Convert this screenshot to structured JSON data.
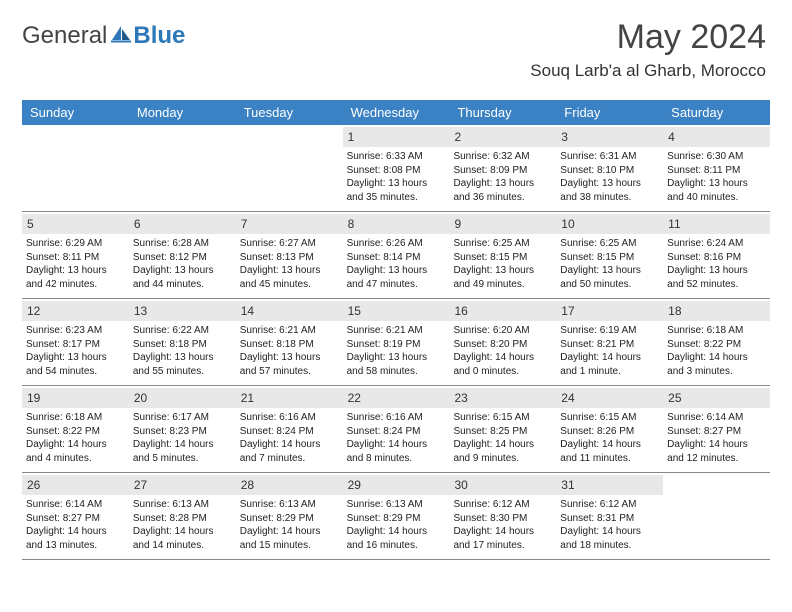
{
  "logo": {
    "text_general": "General",
    "text_blue": "Blue"
  },
  "header": {
    "title": "May 2024",
    "location": "Souq Larb'a al Gharb, Morocco"
  },
  "colors": {
    "header_bg": "#3a82c4",
    "daynum_bg": "#e8e8e8",
    "text": "#222222",
    "title": "#444444"
  },
  "weekdays": [
    "Sunday",
    "Monday",
    "Tuesday",
    "Wednesday",
    "Thursday",
    "Friday",
    "Saturday"
  ],
  "weeks": [
    [
      {
        "num": "",
        "lines": []
      },
      {
        "num": "",
        "lines": []
      },
      {
        "num": "",
        "lines": []
      },
      {
        "num": "1",
        "lines": [
          "Sunrise: 6:33 AM",
          "Sunset: 8:08 PM",
          "Daylight: 13 hours",
          "and 35 minutes."
        ]
      },
      {
        "num": "2",
        "lines": [
          "Sunrise: 6:32 AM",
          "Sunset: 8:09 PM",
          "Daylight: 13 hours",
          "and 36 minutes."
        ]
      },
      {
        "num": "3",
        "lines": [
          "Sunrise: 6:31 AM",
          "Sunset: 8:10 PM",
          "Daylight: 13 hours",
          "and 38 minutes."
        ]
      },
      {
        "num": "4",
        "lines": [
          "Sunrise: 6:30 AM",
          "Sunset: 8:11 PM",
          "Daylight: 13 hours",
          "and 40 minutes."
        ]
      }
    ],
    [
      {
        "num": "5",
        "lines": [
          "Sunrise: 6:29 AM",
          "Sunset: 8:11 PM",
          "Daylight: 13 hours",
          "and 42 minutes."
        ]
      },
      {
        "num": "6",
        "lines": [
          "Sunrise: 6:28 AM",
          "Sunset: 8:12 PM",
          "Daylight: 13 hours",
          "and 44 minutes."
        ]
      },
      {
        "num": "7",
        "lines": [
          "Sunrise: 6:27 AM",
          "Sunset: 8:13 PM",
          "Daylight: 13 hours",
          "and 45 minutes."
        ]
      },
      {
        "num": "8",
        "lines": [
          "Sunrise: 6:26 AM",
          "Sunset: 8:14 PM",
          "Daylight: 13 hours",
          "and 47 minutes."
        ]
      },
      {
        "num": "9",
        "lines": [
          "Sunrise: 6:25 AM",
          "Sunset: 8:15 PM",
          "Daylight: 13 hours",
          "and 49 minutes."
        ]
      },
      {
        "num": "10",
        "lines": [
          "Sunrise: 6:25 AM",
          "Sunset: 8:15 PM",
          "Daylight: 13 hours",
          "and 50 minutes."
        ]
      },
      {
        "num": "11",
        "lines": [
          "Sunrise: 6:24 AM",
          "Sunset: 8:16 PM",
          "Daylight: 13 hours",
          "and 52 minutes."
        ]
      }
    ],
    [
      {
        "num": "12",
        "lines": [
          "Sunrise: 6:23 AM",
          "Sunset: 8:17 PM",
          "Daylight: 13 hours",
          "and 54 minutes."
        ]
      },
      {
        "num": "13",
        "lines": [
          "Sunrise: 6:22 AM",
          "Sunset: 8:18 PM",
          "Daylight: 13 hours",
          "and 55 minutes."
        ]
      },
      {
        "num": "14",
        "lines": [
          "Sunrise: 6:21 AM",
          "Sunset: 8:18 PM",
          "Daylight: 13 hours",
          "and 57 minutes."
        ]
      },
      {
        "num": "15",
        "lines": [
          "Sunrise: 6:21 AM",
          "Sunset: 8:19 PM",
          "Daylight: 13 hours",
          "and 58 minutes."
        ]
      },
      {
        "num": "16",
        "lines": [
          "Sunrise: 6:20 AM",
          "Sunset: 8:20 PM",
          "Daylight: 14 hours",
          "and 0 minutes."
        ]
      },
      {
        "num": "17",
        "lines": [
          "Sunrise: 6:19 AM",
          "Sunset: 8:21 PM",
          "Daylight: 14 hours",
          "and 1 minute."
        ]
      },
      {
        "num": "18",
        "lines": [
          "Sunrise: 6:18 AM",
          "Sunset: 8:22 PM",
          "Daylight: 14 hours",
          "and 3 minutes."
        ]
      }
    ],
    [
      {
        "num": "19",
        "lines": [
          "Sunrise: 6:18 AM",
          "Sunset: 8:22 PM",
          "Daylight: 14 hours",
          "and 4 minutes."
        ]
      },
      {
        "num": "20",
        "lines": [
          "Sunrise: 6:17 AM",
          "Sunset: 8:23 PM",
          "Daylight: 14 hours",
          "and 5 minutes."
        ]
      },
      {
        "num": "21",
        "lines": [
          "Sunrise: 6:16 AM",
          "Sunset: 8:24 PM",
          "Daylight: 14 hours",
          "and 7 minutes."
        ]
      },
      {
        "num": "22",
        "lines": [
          "Sunrise: 6:16 AM",
          "Sunset: 8:24 PM",
          "Daylight: 14 hours",
          "and 8 minutes."
        ]
      },
      {
        "num": "23",
        "lines": [
          "Sunrise: 6:15 AM",
          "Sunset: 8:25 PM",
          "Daylight: 14 hours",
          "and 9 minutes."
        ]
      },
      {
        "num": "24",
        "lines": [
          "Sunrise: 6:15 AM",
          "Sunset: 8:26 PM",
          "Daylight: 14 hours",
          "and 11 minutes."
        ]
      },
      {
        "num": "25",
        "lines": [
          "Sunrise: 6:14 AM",
          "Sunset: 8:27 PM",
          "Daylight: 14 hours",
          "and 12 minutes."
        ]
      }
    ],
    [
      {
        "num": "26",
        "lines": [
          "Sunrise: 6:14 AM",
          "Sunset: 8:27 PM",
          "Daylight: 14 hours",
          "and 13 minutes."
        ]
      },
      {
        "num": "27",
        "lines": [
          "Sunrise: 6:13 AM",
          "Sunset: 8:28 PM",
          "Daylight: 14 hours",
          "and 14 minutes."
        ]
      },
      {
        "num": "28",
        "lines": [
          "Sunrise: 6:13 AM",
          "Sunset: 8:29 PM",
          "Daylight: 14 hours",
          "and 15 minutes."
        ]
      },
      {
        "num": "29",
        "lines": [
          "Sunrise: 6:13 AM",
          "Sunset: 8:29 PM",
          "Daylight: 14 hours",
          "and 16 minutes."
        ]
      },
      {
        "num": "30",
        "lines": [
          "Sunrise: 6:12 AM",
          "Sunset: 8:30 PM",
          "Daylight: 14 hours",
          "and 17 minutes."
        ]
      },
      {
        "num": "31",
        "lines": [
          "Sunrise: 6:12 AM",
          "Sunset: 8:31 PM",
          "Daylight: 14 hours",
          "and 18 minutes."
        ]
      },
      {
        "num": "",
        "lines": []
      }
    ]
  ]
}
